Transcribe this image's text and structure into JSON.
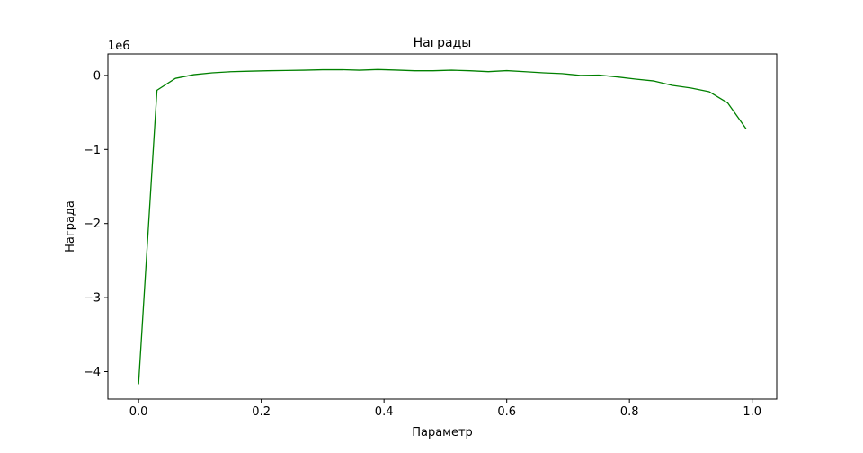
{
  "chart_data": {
    "type": "line",
    "title": "Награды",
    "xlabel": "Параметр",
    "ylabel": "Награда",
    "y_scale_label": "1e6",
    "xlim": [
      -0.05,
      1.04
    ],
    "ylim": [
      -4.37,
      0.29
    ],
    "x_ticks": [
      0.0,
      0.2,
      0.4,
      0.6,
      0.8,
      1.0
    ],
    "x_tick_labels": [
      "0.0",
      "0.2",
      "0.4",
      "0.6",
      "0.8",
      "1.0"
    ],
    "y_ticks": [
      0,
      -1,
      -2,
      -3,
      -4
    ],
    "y_tick_labels": [
      "0",
      "−1",
      "−2",
      "−3",
      "−4"
    ],
    "grid": false,
    "series": [
      {
        "color": "#008000",
        "x": [
          0.0,
          0.03,
          0.06,
          0.09,
          0.12,
          0.15,
          0.18,
          0.21,
          0.24,
          0.27,
          0.3,
          0.33,
          0.36,
          0.39,
          0.42,
          0.45,
          0.48,
          0.51,
          0.54,
          0.57,
          0.6,
          0.63,
          0.66,
          0.69,
          0.72,
          0.75,
          0.78,
          0.81,
          0.84,
          0.87,
          0.9,
          0.93,
          0.96,
          0.99
        ],
        "y": [
          -4.17,
          -0.2,
          -0.04,
          0.01,
          0.035,
          0.05,
          0.057,
          0.063,
          0.067,
          0.071,
          0.077,
          0.078,
          0.071,
          0.08,
          0.072,
          0.063,
          0.063,
          0.071,
          0.063,
          0.051,
          0.065,
          0.05,
          0.035,
          0.025,
          0.0,
          0.005,
          -0.02,
          -0.05,
          -0.075,
          -0.135,
          -0.17,
          -0.22,
          -0.37,
          -0.72
        ]
      }
    ]
  }
}
